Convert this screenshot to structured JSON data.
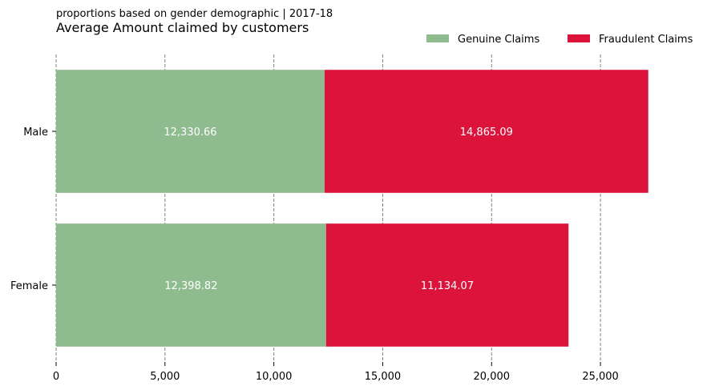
{
  "chart_data": {
    "type": "bar",
    "orientation": "horizontal",
    "stacked": true,
    "subtitle": "proportions based on gender demographic | 2017-18",
    "title": "Average Amount claimed by customers",
    "categories": [
      "Male",
      "Female"
    ],
    "series": [
      {
        "name": "Genuine Claims",
        "color": "#8fbc8f",
        "values": [
          12330.66,
          12398.82
        ],
        "labels": [
          "12,330.66",
          "12,398.82"
        ]
      },
      {
        "name": "Fraudulent Claims",
        "color": "#dc143c",
        "values": [
          14865.09,
          11134.07
        ],
        "labels": [
          "14,865.09",
          "11,134.07"
        ]
      }
    ],
    "xlim": [
      0,
      27500
    ],
    "xticks": [
      0,
      5000,
      10000,
      15000,
      20000,
      25000
    ],
    "xtick_labels": [
      "0",
      "5,000",
      "10,000",
      "15,000",
      "20,000",
      "25,000"
    ],
    "grid": "vertical-dashed",
    "legend_position": "top-right"
  }
}
